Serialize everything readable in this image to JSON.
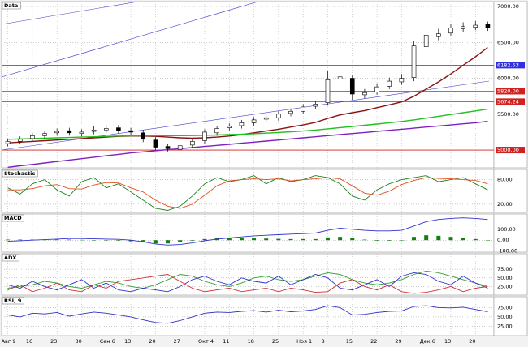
{
  "chart_data": [
    {
      "type": "candlestick",
      "title": "Data",
      "categories": [
        "Авг 9",
        null,
        "16",
        null,
        "23",
        null,
        "30",
        null,
        "Сен 6",
        null,
        "13",
        null,
        "20",
        null,
        "27",
        null,
        "Окт 4",
        null,
        "11",
        null,
        "18",
        null,
        "25",
        null,
        "Ноя 1",
        null,
        "8",
        null,
        "15",
        null,
        "22",
        null,
        "29",
        null,
        "Дек 6",
        null,
        "13",
        null,
        "20",
        null
      ],
      "open": [
        5090,
        5120,
        5160,
        5200,
        5240,
        5270,
        5230,
        5260,
        5280,
        5310,
        5270,
        5240,
        5140,
        5050,
        5010,
        5070,
        5130,
        5240,
        5310,
        5340,
        5380,
        5430,
        5450,
        5510,
        5540,
        5610,
        5660,
        5990,
        6000,
        5770,
        5810,
        5890,
        5950,
        6010,
        6440,
        6580,
        6630,
        6690,
        6710,
        6750
      ],
      "high": [
        5160,
        5190,
        5240,
        5270,
        5300,
        5310,
        5290,
        5330,
        5350,
        5350,
        5310,
        5280,
        5180,
        5090,
        5100,
        5160,
        5290,
        5340,
        5370,
        5420,
        5460,
        5490,
        5540,
        5580,
        5640,
        5690,
        6100,
        6080,
        6040,
        5850,
        5930,
        6010,
        6060,
        6520,
        6680,
        6690,
        6760,
        6780,
        6800,
        6790
      ],
      "low": [
        5050,
        5080,
        5120,
        5160,
        5200,
        5200,
        5190,
        5220,
        5240,
        5230,
        5210,
        5110,
        5000,
        4980,
        4970,
        5030,
        5090,
        5200,
        5270,
        5300,
        5340,
        5390,
        5410,
        5470,
        5500,
        5570,
        5620,
        5930,
        5700,
        5720,
        5770,
        5850,
        5910,
        5960,
        6380,
        6530,
        6590,
        6650,
        6670,
        6660
      ],
      "close": [
        5120,
        5150,
        5200,
        5230,
        5260,
        5240,
        5250,
        5280,
        5300,
        5270,
        5250,
        5150,
        5040,
        5020,
        5060,
        5120,
        5250,
        5300,
        5330,
        5380,
        5420,
        5450,
        5500,
        5540,
        5600,
        5640,
        5980,
        6020,
        5780,
        5800,
        5880,
        5960,
        6000,
        6450,
        6600,
        6620,
        6700,
        6720,
        6740,
        6700
      ],
      "overlays": [
        {
          "color": "#8b1010",
          "values": [
            5100,
            5110,
            5120,
            5130,
            5140,
            5150,
            5160,
            5170,
            5180,
            5190,
            5195,
            5195,
            5190,
            5180,
            5170,
            5165,
            5170,
            5180,
            5195,
            5215,
            5240,
            5265,
            5290,
            5320,
            5350,
            5385,
            5440,
            5490,
            5520,
            5550,
            5590,
            5630,
            5670,
            5750,
            5850,
            5950,
            6060,
            6180,
            6300,
            6430
          ]
        },
        {
          "color": "#20c020",
          "values": [
            5150,
            5155,
            5160,
            5165,
            5170,
            5175,
            5180,
            5185,
            5190,
            5195,
            5198,
            5200,
            5200,
            5200,
            5200,
            5202,
            5205,
            5210,
            5215,
            5220,
            5228,
            5235,
            5245,
            5255,
            5265,
            5278,
            5295,
            5312,
            5328,
            5345,
            5362,
            5380,
            5398,
            5420,
            5445,
            5470,
            5495,
            5520,
            5545,
            5570
          ]
        },
        {
          "color": "#8020c0",
          "values": [
            4760,
            4780,
            4800,
            4820,
            4840,
            4860,
            4880,
            4900,
            4920,
            4940,
            4960,
            4975,
            4990,
            5005,
            5020,
            5035,
            5050,
            5065,
            5080,
            5095,
            5110,
            5125,
            5140,
            5155,
            5170,
            5185,
            5200,
            5215,
            5230,
            5245,
            5260,
            5275,
            5290,
            5305,
            5320,
            5335,
            5350,
            5365,
            5380,
            5400
          ]
        }
      ],
      "levels": [
        6182.53,
        {
          "value": 5820,
          "label": "5820.00"
        },
        5674.24,
        {
          "value": 5000,
          "label": "5000.00"
        }
      ],
      "level_colors": [
        "#3030e0",
        "#d02020",
        "#d02020",
        "#d02020"
      ],
      "ylim": [
        4752,
        7068
      ],
      "yticks": [
        {
          "value": 7000,
          "label": "7000.00"
        },
        {
          "value": 6500,
          "label": "6500.00"
        },
        {
          "value": 6000,
          "label": "6000.00"
        },
        {
          "value": 5500,
          "label": "5500.00"
        }
      ]
    },
    {
      "type": "line",
      "title": "Stochastic",
      "ylim": [
        0,
        105
      ],
      "yticks": [
        {
          "value": 80,
          "label": "80.00"
        },
        {
          "value": 20,
          "label": "20.00"
        }
      ],
      "series": [
        {
          "color": "#208020",
          "values": [
            60,
            45,
            70,
            80,
            55,
            40,
            75,
            85,
            60,
            70,
            50,
            30,
            10,
            5,
            15,
            40,
            70,
            85,
            75,
            80,
            90,
            70,
            85,
            75,
            80,
            90,
            85,
            70,
            40,
            30,
            55,
            70,
            80,
            85,
            90,
            75,
            80,
            85,
            70,
            55
          ]
        },
        {
          "color": "#e05020",
          "values": [
            55,
            55,
            58,
            65,
            68,
            58,
            57,
            67,
            73,
            72,
            60,
            50,
            30,
            15,
            10,
            20,
            42,
            65,
            77,
            80,
            82,
            80,
            82,
            77,
            80,
            82,
            85,
            82,
            65,
            47,
            42,
            52,
            68,
            78,
            85,
            83,
            82,
            80,
            78,
            70
          ]
        }
      ]
    },
    {
      "type": "line",
      "title": "MACD",
      "ylim": [
        -110,
        240
      ],
      "yticks": [
        {
          "value": 100,
          "label": "100.00"
        },
        {
          "value": 0,
          "label": "0.00"
        },
        {
          "value": -100,
          "label": "-100.00"
        }
      ],
      "series": [
        {
          "type": "bar",
          "color": "#108010",
          "values": [
            5,
            5,
            5,
            5,
            5,
            5,
            3,
            0,
            -3,
            -5,
            -10,
            -20,
            -30,
            -30,
            -20,
            -5,
            10,
            20,
            20,
            20,
            18,
            15,
            12,
            10,
            10,
            10,
            25,
            30,
            20,
            5,
            -5,
            -5,
            0,
            30,
            45,
            40,
            30,
            20,
            10,
            0
          ]
        },
        {
          "color": "#3030d0",
          "values": [
            -10,
            -5,
            0,
            5,
            10,
            15,
            15,
            12,
            10,
            8,
            0,
            -15,
            -35,
            -45,
            -40,
            -25,
            -5,
            10,
            20,
            30,
            40,
            45,
            50,
            55,
            60,
            65,
            90,
            110,
            100,
            90,
            85,
            85,
            90,
            130,
            170,
            190,
            200,
            205,
            200,
            190
          ]
        }
      ]
    },
    {
      "type": "line",
      "title": "ADX",
      "ylim": [
        0,
        120
      ],
      "yticks": [
        {
          "value": 75,
          "label": "75.00"
        },
        {
          "value": 50,
          "label": "50.00"
        },
        {
          "value": 25,
          "label": "25.00"
        }
      ],
      "series": [
        {
          "color": "#30a030",
          "values": [
            20,
            25,
            30,
            40,
            35,
            25,
            20,
            30,
            40,
            35,
            25,
            20,
            30,
            45,
            60,
            55,
            40,
            30,
            25,
            35,
            50,
            55,
            45,
            40,
            45,
            55,
            65,
            60,
            45,
            35,
            30,
            35,
            45,
            60,
            70,
            65,
            55,
            45,
            35,
            25
          ]
        },
        {
          "color": "#3030d0",
          "values": [
            30,
            20,
            40,
            25,
            15,
            30,
            45,
            20,
            35,
            15,
            10,
            20,
            15,
            10,
            25,
            45,
            55,
            40,
            30,
            50,
            40,
            35,
            55,
            30,
            45,
            60,
            50,
            20,
            15,
            30,
            45,
            25,
            55,
            65,
            60,
            40,
            30,
            55,
            35,
            20
          ]
        },
        {
          "color": "#d03030",
          "values": [
            15,
            30,
            10,
            20,
            35,
            15,
            10,
            30,
            20,
            40,
            45,
            50,
            55,
            60,
            40,
            20,
            10,
            15,
            20,
            10,
            15,
            20,
            10,
            20,
            15,
            8,
            10,
            35,
            45,
            25,
            15,
            30,
            10,
            5,
            8,
            15,
            25,
            10,
            20,
            25
          ]
        }
      ]
    },
    {
      "type": "line",
      "title": "RSI, 9",
      "ylim": [
        0,
        104
      ],
      "yticks": [
        {
          "value": 75,
          "label": "75.00"
        },
        {
          "value": 50,
          "label": "50.00"
        },
        {
          "value": 25,
          "label": "25.00"
        }
      ],
      "series": [
        {
          "color": "#3030c0",
          "values": [
            55,
            50,
            60,
            58,
            62,
            52,
            58,
            63,
            60,
            55,
            50,
            42,
            35,
            33,
            40,
            50,
            60,
            63,
            62,
            65,
            67,
            63,
            68,
            64,
            66,
            70,
            80,
            75,
            55,
            57,
            62,
            65,
            66,
            78,
            80,
            75,
            74,
            76,
            70,
            64
          ]
        }
      ]
    }
  ]
}
